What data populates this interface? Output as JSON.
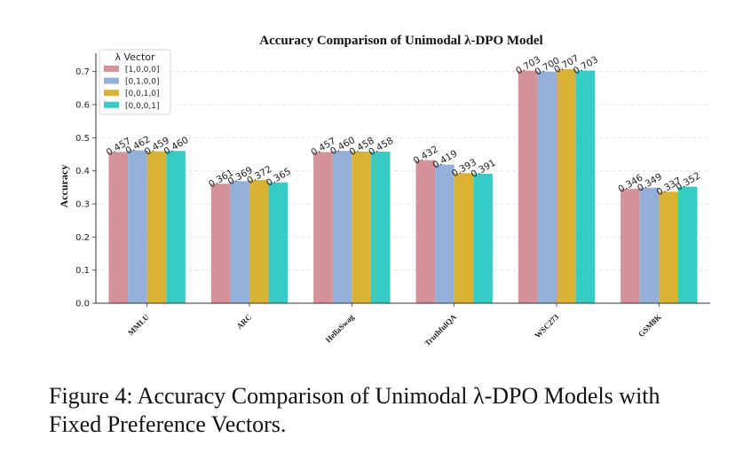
{
  "chart_data": {
    "type": "bar",
    "title": "Accuracy Comparison of Unimodal λ-DPO Model",
    "xlabel": "",
    "ylabel": "Accuracy",
    "ylim": [
      0,
      0.75
    ],
    "yticks": [
      "0.0",
      "0.1",
      "0.2",
      "0.3",
      "0.4",
      "0.5",
      "0.6",
      "0.7"
    ],
    "grid": true,
    "legend_title": "λ Vector",
    "legend_position": "top-left",
    "categories": [
      "MMLU",
      "ARC",
      "HellaSwag",
      "TruthfulQA",
      "WSC273",
      "GSM8K"
    ],
    "series": [
      {
        "name": "[1,0,0,0]",
        "color": "#d4939a",
        "values": [
          0.457,
          0.361,
          0.457,
          0.432,
          0.703,
          0.346
        ],
        "labels": [
          "0.457",
          "0.361",
          "0.457",
          "0.432",
          "0.703",
          "0.346"
        ]
      },
      {
        "name": "[0,1,0,0]",
        "color": "#94afd8",
        "values": [
          0.462,
          0.369,
          0.46,
          0.419,
          0.7,
          0.349
        ],
        "labels": [
          "0.462",
          "0.369",
          "0.460",
          "0.419",
          "0.700",
          "0.349"
        ]
      },
      {
        "name": "[0,0,1,0]",
        "color": "#d8b235",
        "values": [
          0.459,
          0.372,
          0.458,
          0.393,
          0.707,
          0.337
        ],
        "labels": [
          "0.459",
          "0.372",
          "0.458",
          "0.393",
          "0.707",
          "0.337"
        ]
      },
      {
        "name": "[0,0,0,1]",
        "color": "#37cbc6",
        "values": [
          0.46,
          0.365,
          0.458,
          0.391,
          0.703,
          0.352
        ],
        "labels": [
          "0.460",
          "0.365",
          "0.458",
          "0.391",
          "0.703",
          "0.352"
        ]
      }
    ]
  },
  "caption": "Figure 4: Accuracy Comparison of Unimodal λ-DPO Models with Fixed Preference Vectors."
}
